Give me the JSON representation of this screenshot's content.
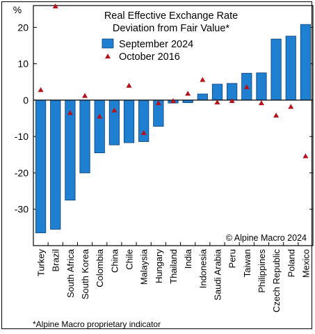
{
  "chart_data": {
    "type": "bar",
    "title": "Real Effective Exchange Rate\nDeviation from Fair Value*",
    "ylabel": "%",
    "ylim": [
      -40,
      26
    ],
    "yticks": [
      20,
      10,
      0,
      -10,
      -20,
      -30
    ],
    "categories": [
      "Turkey",
      "Brazil",
      "South Africa",
      "South Korea",
      "Colombia",
      "China",
      "Chile",
      "Malaysia",
      "Hungary",
      "Thailand",
      "India",
      "Indonesia",
      "Saudi Arabia",
      "Peru",
      "Taiwan",
      "Philippines",
      "Czech Republic",
      "Poland",
      "Mexico"
    ],
    "series": [
      {
        "name": "September 2024",
        "kind": "bar",
        "color": "#1f7fd1",
        "values": [
          -36.5,
          -35.5,
          -27.5,
          -20,
          -14.5,
          -12.3,
          -11.7,
          -11.4,
          -7.2,
          -0.8,
          -0.7,
          1.7,
          4.4,
          4.6,
          7.4,
          7.5,
          16.8,
          17.6,
          20.8
        ]
      },
      {
        "name": "October 2016",
        "kind": "marker",
        "color": "#b5121b",
        "values": [
          2.8,
          25.8,
          -3.5,
          1.2,
          -4.5,
          -2.8,
          4.0,
          -9.0,
          -0.8,
          -0.2,
          1.8,
          5.6,
          -0.6,
          -0.2,
          3.6,
          -0.8,
          -4.2,
          -1.8,
          -15.4
        ]
      }
    ],
    "legend_position": "top-right",
    "credit": "© Alpine Macro 2024",
    "footnote": "*Alpine Macro proprietary indicator"
  }
}
